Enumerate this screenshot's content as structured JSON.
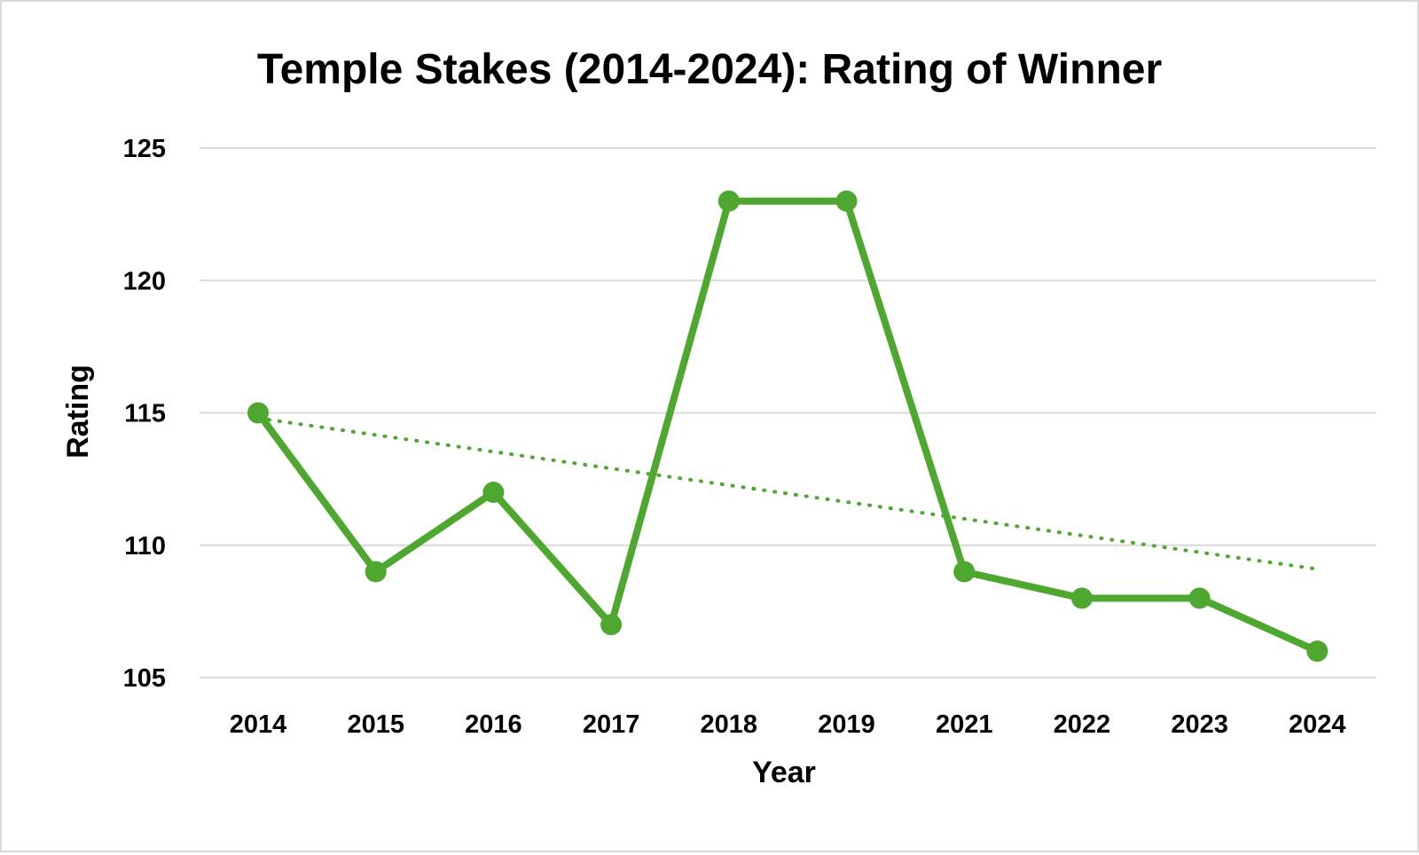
{
  "chart_data": {
    "type": "line",
    "title": "Temple Stakes (2014-2024): Rating of Winner",
    "xlabel": "Year",
    "ylabel": "Rating",
    "categories": [
      "2014",
      "2015",
      "2016",
      "2017",
      "2018",
      "2019",
      "2021",
      "2022",
      "2023",
      "2024"
    ],
    "series": [
      {
        "values": [
          115,
          109,
          112,
          107,
          123,
          123,
          109,
          108,
          108,
          106
        ]
      }
    ],
    "trendline": {
      "type": "linear",
      "start": 114.8,
      "end": 109.1
    },
    "yticks": [
      105,
      110,
      115,
      120,
      125
    ],
    "ylim": [
      105,
      125
    ],
    "grid": true,
    "legend": "none",
    "colors": {
      "series": "#4ea72e",
      "gridline": "#d9d9d9",
      "border": "#d9d9d9"
    }
  }
}
